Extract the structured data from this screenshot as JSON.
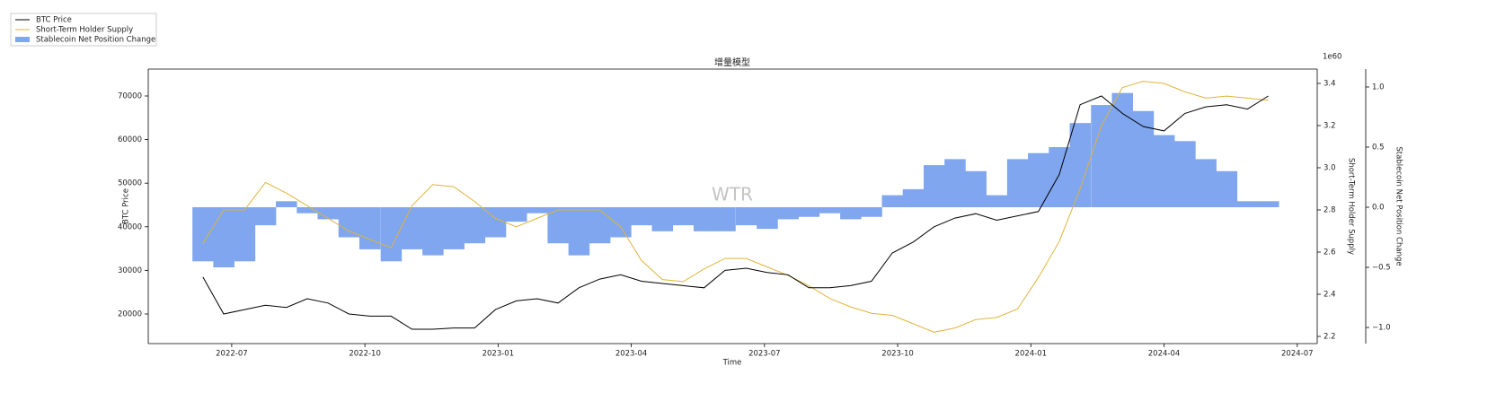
{
  "chart_data": {
    "type": "combo",
    "title": "增量模型",
    "watermark": "WTR",
    "x_label": "Time",
    "y_label": "BTC Price",
    "y2_label": "Short-Term Holder Supply",
    "y3_label": "Stablecoin Net Position Change",
    "y2_offset_label": "1e60",
    "legend": "upper left",
    "x": [
      5.35,
      5.82,
      6.29,
      6.76,
      7.23,
      7.7,
      8.17,
      8.64,
      9.11,
      9.59,
      10.06,
      10.53,
      11.0,
      11.47,
      11.94,
      12.41,
      12.88,
      13.35,
      13.82,
      14.29,
      14.76,
      15.23,
      15.7,
      16.17,
      16.64,
      17.11,
      17.59,
      18.06,
      18.53,
      19.0,
      19.47,
      19.94,
      20.41,
      20.88,
      21.35,
      21.82,
      22.29,
      22.76,
      23.23,
      23.7,
      24.17,
      24.64,
      25.11,
      25.59,
      26.06,
      26.53,
      27.0,
      27.47,
      27.94,
      28.41,
      28.88,
      29.35
    ],
    "xlim": [
      4.12,
      30.45
    ],
    "xticks": [
      {
        "value": 6,
        "label": "2022-07"
      },
      {
        "value": 9,
        "label": "2022-10"
      },
      {
        "value": 12,
        "label": "2023-01"
      },
      {
        "value": 15,
        "label": "2023-04"
      },
      {
        "value": 18,
        "label": "2023-07"
      },
      {
        "value": 21,
        "label": "2023-10"
      },
      {
        "value": 24,
        "label": "2024-01"
      },
      {
        "value": 27,
        "label": "2024-04"
      },
      {
        "value": 30,
        "label": "2024-07"
      }
    ],
    "ylim": [
      13210,
      76170
    ],
    "yticks": [
      20000,
      30000,
      40000,
      50000,
      60000,
      70000
    ],
    "y2lim": [
      2.166,
      3.468
    ],
    "y2ticks": [
      2.2,
      2.4,
      2.6,
      2.8,
      {
        "value": 3,
        "label": "3.0"
      },
      3.2,
      3.4
    ],
    "y3lim": [
      -1.134,
      1.149
    ],
    "y3ticks": [
      {
        "value": -1,
        "label": "−1.0"
      },
      {
        "value": -0.5,
        "label": "−0.5"
      },
      {
        "value": 0,
        "label": "0.0"
      },
      {
        "value": 0.5,
        "label": "0.5"
      },
      {
        "value": 1,
        "label": "1.0"
      }
    ],
    "series": [
      {
        "name": "BTC Price",
        "type": "line",
        "axis": "y",
        "color": "#000000",
        "values": [
          28500,
          20000,
          21000,
          22000,
          21500,
          23500,
          22500,
          20000,
          19500,
          19500,
          16500,
          16500,
          16800,
          16800,
          21000,
          23000,
          23500,
          22500,
          26000,
          28000,
          29000,
          27500,
          27000,
          26500,
          26000,
          30000,
          30500,
          29500,
          29000,
          26000,
          26000,
          26500,
          27500,
          34000,
          36500,
          40000,
          42000,
          43000,
          41500,
          42500,
          43500,
          52000,
          68000,
          70000,
          66000,
          63000,
          62000,
          66000,
          67500,
          68000,
          67000,
          70000
        ]
      },
      {
        "name": "Short-Term Holder Supply",
        "type": "line",
        "axis": "y2",
        "color": "#e0b43c",
        "values": [
          2.64,
          2.8,
          2.8,
          2.93,
          2.88,
          2.82,
          2.76,
          2.7,
          2.66,
          2.62,
          2.82,
          2.92,
          2.91,
          2.84,
          2.76,
          2.72,
          2.76,
          2.8,
          2.8,
          2.8,
          2.72,
          2.56,
          2.47,
          2.46,
          2.52,
          2.57,
          2.57,
          2.53,
          2.49,
          2.44,
          2.38,
          2.34,
          2.31,
          2.3,
          2.26,
          2.22,
          2.24,
          2.28,
          2.29,
          2.33,
          2.48,
          2.65,
          2.9,
          3.2,
          3.38,
          3.41,
          3.4,
          3.36,
          3.33,
          3.34,
          3.33,
          3.32
        ]
      },
      {
        "name": "Stablecoin Net Position Change",
        "type": "bar",
        "axis": "y3",
        "color": "#7fa6ee",
        "values": [
          -0.45,
          -0.5,
          -0.45,
          -0.15,
          0.05,
          -0.05,
          -0.1,
          -0.25,
          -0.35,
          -0.45,
          -0.35,
          -0.4,
          -0.35,
          -0.3,
          -0.25,
          -0.12,
          -0.05,
          -0.3,
          -0.4,
          -0.3,
          -0.25,
          -0.15,
          -0.2,
          -0.15,
          -0.2,
          -0.2,
          -0.15,
          -0.18,
          -0.1,
          -0.08,
          -0.05,
          -0.1,
          -0.08,
          0.1,
          0.15,
          0.35,
          0.4,
          0.3,
          0.1,
          0.4,
          0.45,
          0.5,
          0.7,
          0.85,
          0.95,
          0.8,
          0.6,
          0.55,
          0.4,
          0.3,
          0.05,
          0.05
        ]
      }
    ]
  }
}
